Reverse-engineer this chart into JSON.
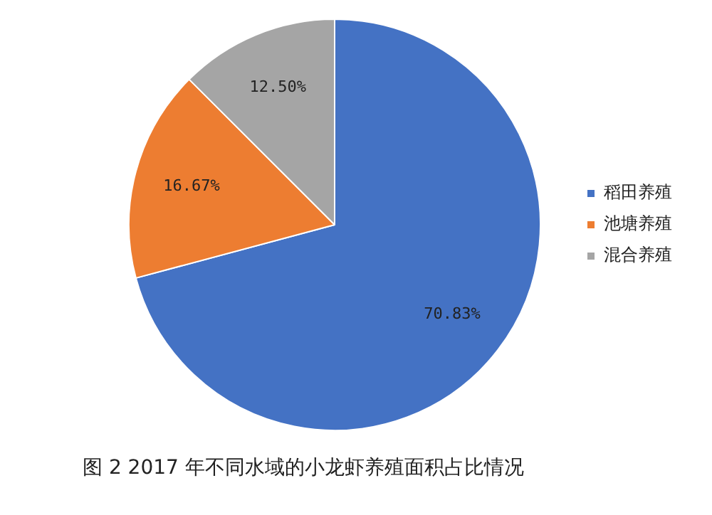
{
  "chart_data": {
    "type": "pie",
    "categories": [
      "稻田养殖",
      "池塘养殖",
      "混合养殖"
    ],
    "values": [
      70.83,
      16.67,
      12.5
    ],
    "colors": [
      "#4472c4",
      "#ed7d31",
      "#a5a5a5"
    ],
    "value_labels": [
      "70.83%",
      "16.67%",
      "12.50%"
    ],
    "legend": "right",
    "annotations": [
      "图 2 2017 年不同水域的小龙虾养殖面积占比情况"
    ]
  }
}
